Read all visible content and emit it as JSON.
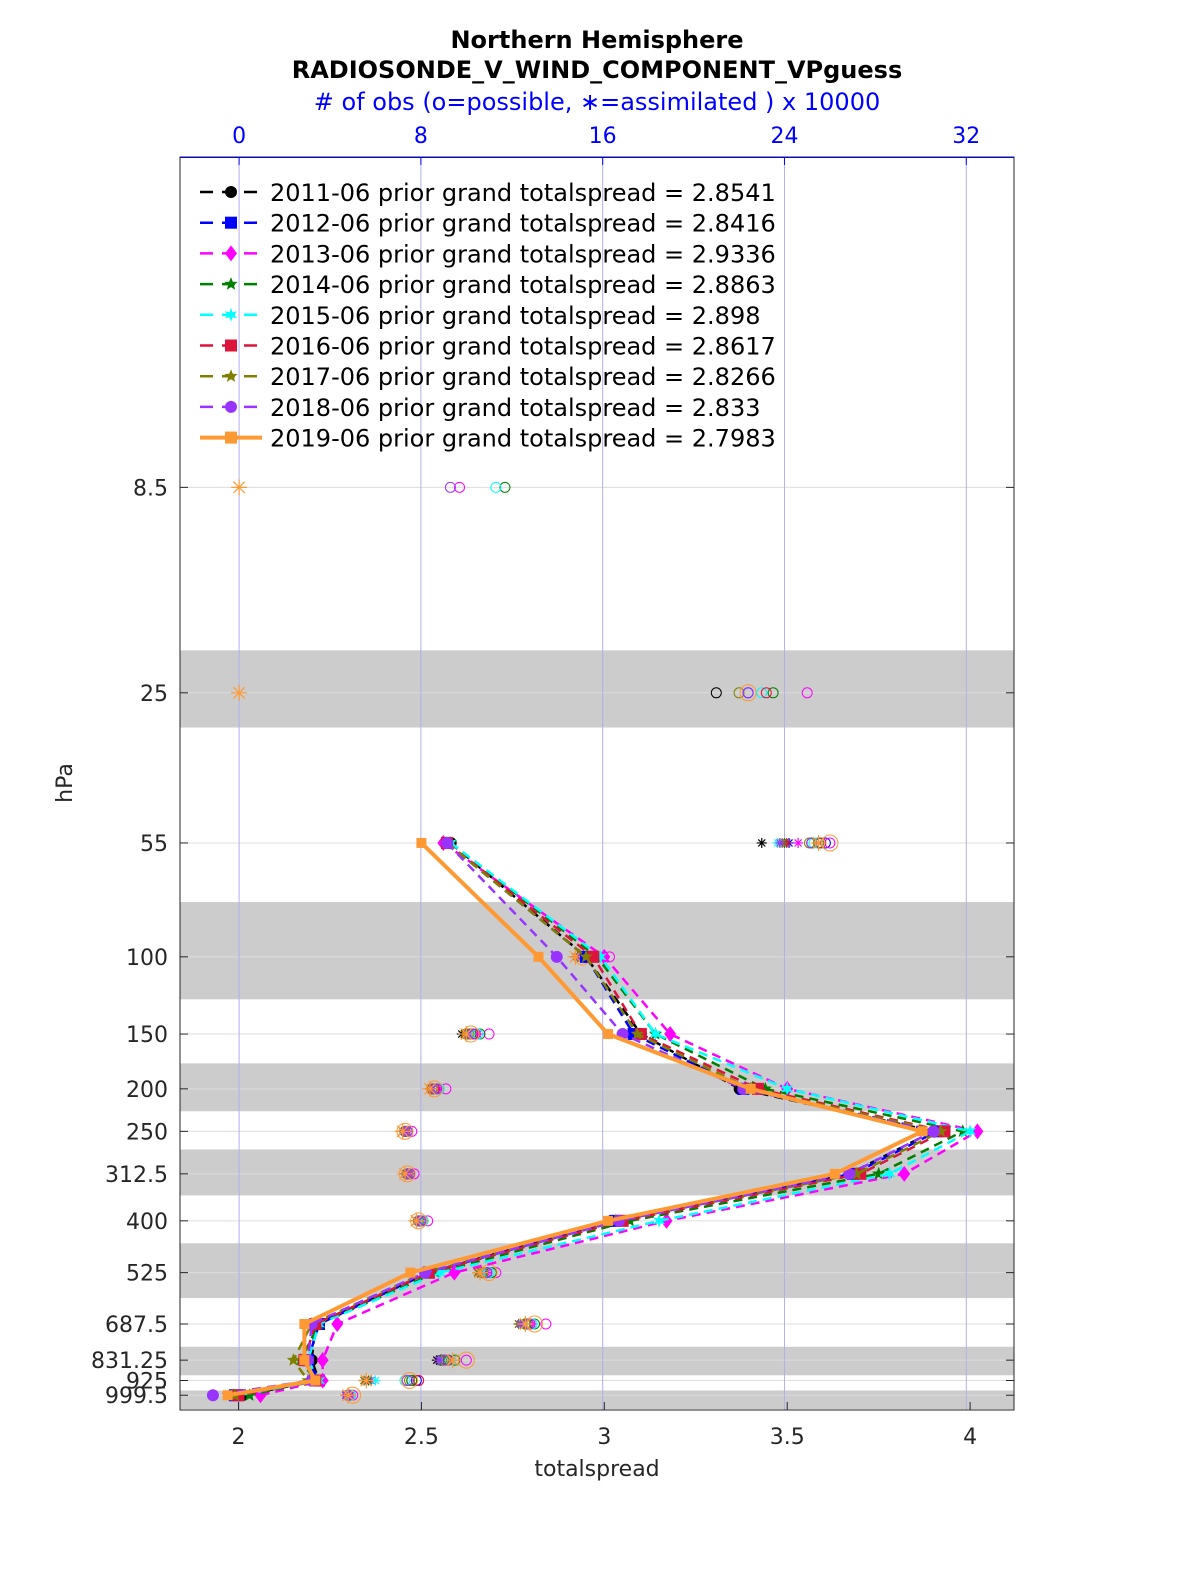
{
  "chart_data": {
    "type": "line",
    "title": "Northern Hemisphere",
    "subtitle": "RADIOSONDE_V_WIND_COMPONENT_VPguess",
    "top_axis_label": "# of obs (o=possible, ∗=assimilated ) x 10000",
    "xlabel": "totalspread",
    "ylabel": "hPa",
    "xlim": [
      1.84,
      4.12
    ],
    "x_ticks": [
      "2",
      "2.5",
      "3",
      "3.5",
      "4"
    ],
    "x_tick_values": [
      2,
      2.5,
      3,
      3.5,
      4
    ],
    "top_xlim": [
      -2.6,
      34.1
    ],
    "top_ticks": [
      "0",
      "8",
      "16",
      "24",
      "32"
    ],
    "top_tick_values": [
      0,
      8,
      16,
      24,
      32
    ],
    "y_scale": "log",
    "y_reversed": true,
    "ylim": [
      1.5,
      1080
    ],
    "levels_labels": [
      "8.5",
      "25",
      "55",
      "100",
      "150",
      "200",
      "250",
      "312.5",
      "400",
      "525",
      "687.5",
      "831.25",
      "925",
      "999.5"
    ],
    "levels": [
      8.5,
      25,
      55,
      100,
      150,
      200,
      250,
      312.5,
      400,
      525,
      687.5,
      831.25,
      925,
      999.5
    ],
    "shaded_bands": [
      [
        20,
        30
      ],
      [
        75,
        125
      ],
      [
        175,
        225
      ],
      [
        275,
        350
      ],
      [
        450,
        600
      ],
      [
        775,
        900
      ],
      [
        975,
        1075
      ]
    ],
    "grid": true,
    "legend_placement": "top-left",
    "series": [
      {
        "name": "2011-06 prior grand totalspread = 2.8541",
        "color": "#000000",
        "marker": "circle",
        "style": "dashed",
        "values": [
          null,
          null,
          2.58,
          2.95,
          3.1,
          3.37,
          3.9,
          3.67,
          3.02,
          2.52,
          2.21,
          2.2,
          2.22,
          2.01
        ],
        "possible": [
          null,
          21.0,
          25.2,
          15.1,
          10.0,
          8.5,
          7.3,
          7.4,
          7.9,
          10.7,
          12.6,
          8.9,
          7.6,
          4.8
        ],
        "assimilated": [
          null,
          null,
          23.0,
          14.8,
          9.8,
          8.4,
          7.2,
          7.3,
          7.8,
          10.5,
          12.3,
          8.7,
          5.5,
          4.7
        ]
      },
      {
        "name": "2012-06 prior grand totalspread = 2.8416",
        "color": "#0000ff",
        "marker": "square",
        "style": "dashed",
        "values": [
          null,
          null,
          2.57,
          2.95,
          3.08,
          3.38,
          3.91,
          3.68,
          3.03,
          2.52,
          2.22,
          2.19,
          2.22,
          1.99
        ],
        "possible": [
          null,
          22.4,
          25.8,
          15.2,
          10.2,
          8.6,
          7.3,
          7.4,
          7.9,
          10.9,
          12.7,
          9.0,
          7.8,
          4.8
        ],
        "assimilated": [
          null,
          null,
          24.2,
          14.9,
          10.0,
          8.4,
          7.2,
          7.3,
          7.8,
          10.6,
          12.4,
          8.8,
          5.6,
          4.7
        ]
      },
      {
        "name": "2013-06 prior grand totalspread = 2.9336",
        "color": "#ff00ff",
        "marker": "diamond",
        "style": "dashed",
        "values": [
          null,
          null,
          2.56,
          3.0,
          3.18,
          3.5,
          4.02,
          3.82,
          3.17,
          2.59,
          2.27,
          2.23,
          2.23,
          2.06
        ],
        "possible": [
          9.7,
          25.0,
          26.0,
          16.3,
          11.0,
          9.1,
          7.6,
          7.7,
          8.3,
          11.3,
          13.5,
          10.0,
          7.9,
          5.0
        ],
        "assimilated": [
          null,
          null,
          24.6,
          15.6,
          10.5,
          8.8,
          7.4,
          7.5,
          8.1,
          10.9,
          12.9,
          9.4,
          5.8,
          4.9
        ]
      },
      {
        "name": "2014-06 prior grand totalspread = 2.8863",
        "color": "#008000",
        "marker": "star",
        "style": "dashed",
        "values": [
          null,
          null,
          2.58,
          2.98,
          3.14,
          3.44,
          3.98,
          3.75,
          3.07,
          2.54,
          2.22,
          2.17,
          2.21,
          2.03
        ],
        "possible": [
          11.7,
          23.5,
          25.5,
          15.6,
          10.6,
          8.8,
          7.4,
          7.5,
          8.1,
          11.1,
          13.0,
          9.5,
          7.6,
          4.9
        ],
        "assimilated": [
          null,
          null,
          24.0,
          15.0,
          10.1,
          8.5,
          7.3,
          7.4,
          8.0,
          10.7,
          12.6,
          9.0,
          5.7,
          4.8
        ]
      },
      {
        "name": "2015-06 prior grand totalspread = 2.898",
        "color": "#00ffff",
        "marker": "hexagram",
        "style": "dashed",
        "values": [
          null,
          null,
          2.58,
          2.99,
          3.14,
          3.5,
          4.0,
          3.78,
          3.15,
          2.55,
          2.22,
          2.19,
          2.22,
          2.0
        ],
        "possible": [
          11.3,
          23.0,
          25.3,
          15.5,
          10.5,
          8.8,
          7.4,
          7.5,
          8.1,
          11.0,
          12.9,
          9.3,
          7.3,
          4.9
        ],
        "assimilated": [
          null,
          null,
          23.7,
          15.0,
          10.2,
          8.5,
          7.3,
          7.4,
          8.0,
          10.7,
          12.5,
          8.9,
          6.0,
          4.8
        ]
      },
      {
        "name": "2016-06 prior grand totalspread = 2.8617",
        "color": "#dc143c",
        "marker": "square",
        "style": "dashed",
        "values": [
          null,
          null,
          2.57,
          2.97,
          3.1,
          3.42,
          3.93,
          3.7,
          3.05,
          2.52,
          2.21,
          2.18,
          2.21,
          2.0
        ],
        "possible": [
          null,
          23.2,
          25.6,
          15.3,
          10.3,
          8.6,
          7.3,
          7.4,
          8.0,
          10.9,
          12.8,
          9.2,
          7.9,
          4.8
        ],
        "assimilated": [
          null,
          null,
          24.1,
          14.9,
          10.0,
          8.5,
          7.2,
          7.3,
          7.8,
          10.6,
          12.4,
          8.8,
          5.6,
          4.7
        ]
      },
      {
        "name": "2017-06 prior grand totalspread = 2.8266",
        "color": "#808000",
        "marker": "star",
        "style": "dashed",
        "values": [
          null,
          null,
          2.57,
          2.95,
          3.09,
          3.4,
          3.92,
          3.69,
          3.03,
          2.51,
          2.2,
          2.15,
          2.19,
          1.99
        ],
        "possible": [
          null,
          22.0,
          25.1,
          15.1,
          10.1,
          8.5,
          7.3,
          7.4,
          7.9,
          10.7,
          12.6,
          9.0,
          7.5,
          4.8
        ],
        "assimilated": [
          null,
          null,
          23.9,
          14.9,
          9.9,
          8.4,
          7.2,
          7.3,
          7.8,
          10.5,
          12.3,
          8.8,
          5.5,
          4.7
        ]
      },
      {
        "name": "2018-06 prior grand totalspread = 2.833",
        "color": "#9933ff",
        "marker": "circle",
        "style": "dashed",
        "values": [
          null,
          null,
          2.57,
          2.87,
          3.05,
          3.38,
          3.9,
          3.67,
          3.04,
          2.51,
          2.2,
          2.19,
          2.2,
          1.93
        ],
        "possible": [
          9.3,
          22.4,
          25.2,
          15.4,
          10.4,
          8.7,
          7.4,
          7.5,
          8.0,
          10.9,
          12.8,
          9.1,
          7.4,
          4.8
        ],
        "assimilated": [
          null,
          null,
          23.8,
          15.0,
          10.1,
          8.5,
          7.3,
          7.4,
          7.9,
          10.6,
          12.4,
          8.8,
          5.6,
          4.7
        ]
      },
      {
        "name": "2019-06 prior grand totalspread = 2.7983",
        "color": "#ff9933",
        "marker": "square",
        "style": "solid",
        "values": [
          null,
          null,
          2.5,
          2.82,
          3.01,
          3.4,
          3.87,
          3.63,
          3.01,
          2.47,
          2.18,
          2.18,
          2.21,
          1.97
        ],
        "possible": [
          null,
          22.4,
          26.0,
          15.1,
          10.2,
          8.6,
          7.3,
          7.4,
          7.9,
          11.0,
          13.0,
          10.0,
          7.5,
          5.0
        ],
        "assimilated": [
          0,
          0,
          25.5,
          14.8,
          10.0,
          8.4,
          7.2,
          7.3,
          7.8,
          10.6,
          12.6,
          9.4,
          5.6,
          4.8
        ]
      }
    ]
  }
}
